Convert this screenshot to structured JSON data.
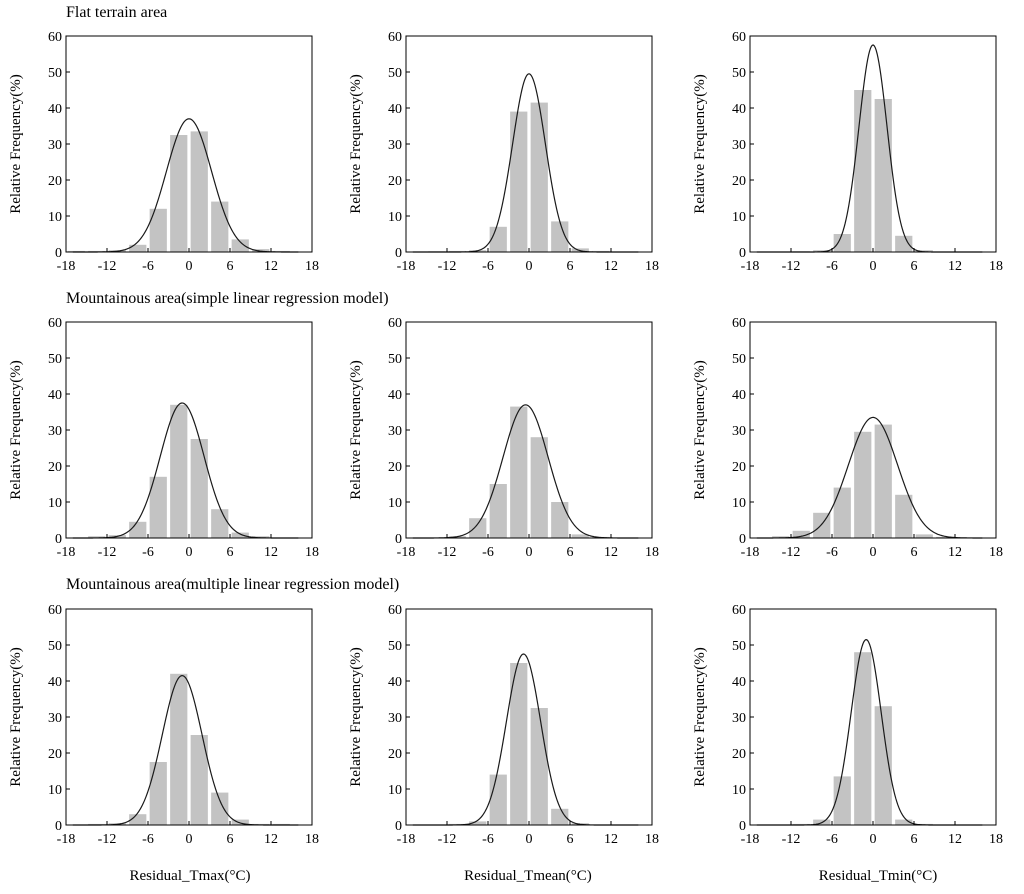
{
  "sections": [
    {
      "title": "Flat terrain area"
    },
    {
      "title": "Mountainous area(simple linear regression model)"
    },
    {
      "title": "Mountainous area(multiple linear regression model)"
    }
  ],
  "xlabels": [
    "Residual_Tmax(°C)",
    "Residual_Tmean(°C)",
    "Residual_Tmin(°C)"
  ],
  "chart_data": [
    {
      "type": "bar",
      "section": "Flat terrain area",
      "variable": "Tmax",
      "ylabel": "Relative Frequency(%)",
      "xlim": [
        -18,
        18
      ],
      "ylim": [
        0,
        60
      ],
      "xticks": [
        -18,
        -12,
        -6,
        0,
        6,
        12,
        18
      ],
      "yticks": [
        0,
        10,
        20,
        30,
        40,
        50,
        60
      ],
      "bin_width": 3,
      "bars": [
        {
          "x": -16.5,
          "y": 0.3
        },
        {
          "x": -13.5,
          "y": 0.3
        },
        {
          "x": -10.5,
          "y": 0.5
        },
        {
          "x": -7.5,
          "y": 2
        },
        {
          "x": -4.5,
          "y": 12
        },
        {
          "x": -1.5,
          "y": 32.5
        },
        {
          "x": 1.5,
          "y": 33.5
        },
        {
          "x": 4.5,
          "y": 14
        },
        {
          "x": 7.5,
          "y": 3.5
        },
        {
          "x": 10.5,
          "y": 0.8
        },
        {
          "x": 13.5,
          "y": 0.3
        }
      ],
      "fit_curve": {
        "type": "normal",
        "mean": 0,
        "peak": 37,
        "sigma": 3.3
      }
    },
    {
      "type": "bar",
      "section": "Flat terrain area",
      "variable": "Tmean",
      "ylabel": "Relative Frequency(%)",
      "xlim": [
        -18,
        18
      ],
      "ylim": [
        0,
        60
      ],
      "xticks": [
        -18,
        -12,
        -6,
        0,
        6,
        12,
        18
      ],
      "yticks": [
        0,
        10,
        20,
        30,
        40,
        50,
        60
      ],
      "bin_width": 3,
      "bars": [
        {
          "x": -13.5,
          "y": 0.2
        },
        {
          "x": -10.5,
          "y": 0.3
        },
        {
          "x": -7.5,
          "y": 0.5
        },
        {
          "x": -4.5,
          "y": 7
        },
        {
          "x": -1.5,
          "y": 39
        },
        {
          "x": 1.5,
          "y": 41.5
        },
        {
          "x": 4.5,
          "y": 8.5
        },
        {
          "x": 7.5,
          "y": 1
        },
        {
          "x": 10.5,
          "y": 0.3
        }
      ],
      "fit_curve": {
        "type": "normal",
        "mean": 0,
        "peak": 49.5,
        "sigma": 2.4
      }
    },
    {
      "type": "bar",
      "section": "Flat terrain area",
      "variable": "Tmin",
      "ylabel": "Relative Frequency(%)",
      "xlim": [
        -18,
        18
      ],
      "ylim": [
        0,
        60
      ],
      "xticks": [
        -18,
        -12,
        -6,
        0,
        6,
        12,
        18
      ],
      "yticks": [
        0,
        10,
        20,
        30,
        40,
        50,
        60
      ],
      "bin_width": 3,
      "bars": [
        {
          "x": -10.5,
          "y": 0.2
        },
        {
          "x": -7.5,
          "y": 0.5
        },
        {
          "x": -4.5,
          "y": 5
        },
        {
          "x": -1.5,
          "y": 45
        },
        {
          "x": 1.5,
          "y": 42.5
        },
        {
          "x": 4.5,
          "y": 4.5
        },
        {
          "x": 7.5,
          "y": 0.5
        }
      ],
      "fit_curve": {
        "type": "normal",
        "mean": 0,
        "peak": 57.5,
        "sigma": 2.05
      }
    },
    {
      "type": "bar",
      "section": "Mountainous area(simple linear regression model)",
      "variable": "Tmax",
      "ylabel": "Relative Frequency(%)",
      "xlim": [
        -18,
        18
      ],
      "ylim": [
        0,
        60
      ],
      "xticks": [
        -18,
        -12,
        -6,
        0,
        6,
        12,
        18
      ],
      "yticks": [
        0,
        10,
        20,
        30,
        40,
        50,
        60
      ],
      "bin_width": 3,
      "bars": [
        {
          "x": -13.5,
          "y": 0.5
        },
        {
          "x": -10.5,
          "y": 0.8
        },
        {
          "x": -7.5,
          "y": 4.5
        },
        {
          "x": -4.5,
          "y": 17
        },
        {
          "x": -1.5,
          "y": 37
        },
        {
          "x": 1.5,
          "y": 27.5
        },
        {
          "x": 4.5,
          "y": 8
        },
        {
          "x": 7.5,
          "y": 1.5
        },
        {
          "x": 10.5,
          "y": 0.5
        }
      ],
      "fit_curve": {
        "type": "normal",
        "mean": -1,
        "peak": 37.5,
        "sigma": 3.2
      }
    },
    {
      "type": "bar",
      "section": "Mountainous area(simple linear regression model)",
      "variable": "Tmean",
      "ylabel": "Relative Frequency(%)",
      "xlim": [
        -18,
        18
      ],
      "ylim": [
        0,
        60
      ],
      "xticks": [
        -18,
        -12,
        -6,
        0,
        6,
        12,
        18
      ],
      "yticks": [
        0,
        10,
        20,
        30,
        40,
        50,
        60
      ],
      "bin_width": 3,
      "bars": [
        {
          "x": -10.5,
          "y": 0.5
        },
        {
          "x": -7.5,
          "y": 5.5
        },
        {
          "x": -4.5,
          "y": 15
        },
        {
          "x": -1.5,
          "y": 36.5
        },
        {
          "x": 1.5,
          "y": 28
        },
        {
          "x": 4.5,
          "y": 10
        },
        {
          "x": 7.5,
          "y": 1
        },
        {
          "x": 10.5,
          "y": 0.3
        }
      ],
      "fit_curve": {
        "type": "normal",
        "mean": -0.5,
        "peak": 37,
        "sigma": 3.3
      }
    },
    {
      "type": "bar",
      "section": "Mountainous area(simple linear regression model)",
      "variable": "Tmin",
      "ylabel": "Relative Frequency(%)",
      "xlim": [
        -18,
        18
      ],
      "ylim": [
        0,
        60
      ],
      "xticks": [
        -18,
        -12,
        -6,
        0,
        6,
        12,
        18
      ],
      "yticks": [
        0,
        10,
        20,
        30,
        40,
        50,
        60
      ],
      "bin_width": 3,
      "bars": [
        {
          "x": -13.5,
          "y": 0.5
        },
        {
          "x": -10.5,
          "y": 2
        },
        {
          "x": -7.5,
          "y": 7
        },
        {
          "x": -4.5,
          "y": 14
        },
        {
          "x": -1.5,
          "y": 29.5
        },
        {
          "x": 1.5,
          "y": 31.5
        },
        {
          "x": 4.5,
          "y": 12
        },
        {
          "x": 7.5,
          "y": 1
        },
        {
          "x": 10.5,
          "y": 0.3
        }
      ],
      "fit_curve": {
        "type": "normal",
        "mean": 0,
        "peak": 33.5,
        "sigma": 3.6
      }
    },
    {
      "type": "bar",
      "section": "Mountainous area(multiple linear regression model)",
      "variable": "Tmax",
      "ylabel": "Relative Frequency(%)",
      "xlim": [
        -18,
        18
      ],
      "ylim": [
        0,
        60
      ],
      "xticks": [
        -18,
        -12,
        -6,
        0,
        6,
        12,
        18
      ],
      "yticks": [
        0,
        10,
        20,
        30,
        40,
        50,
        60
      ],
      "bin_width": 3,
      "bars": [
        {
          "x": -13.5,
          "y": 0.3
        },
        {
          "x": -10.5,
          "y": 0.5
        },
        {
          "x": -7.5,
          "y": 3
        },
        {
          "x": -4.5,
          "y": 17.5
        },
        {
          "x": -1.5,
          "y": 42
        },
        {
          "x": 1.5,
          "y": 25
        },
        {
          "x": 4.5,
          "y": 9
        },
        {
          "x": 7.5,
          "y": 1.5
        },
        {
          "x": 10.5,
          "y": 0.3
        },
        {
          "x": 13.5,
          "y": 0.3
        }
      ],
      "fit_curve": {
        "type": "normal",
        "mean": -1,
        "peak": 41.5,
        "sigma": 2.9
      }
    },
    {
      "type": "bar",
      "section": "Mountainous area(multiple linear regression model)",
      "variable": "Tmean",
      "ylabel": "Relative Frequency(%)",
      "xlim": [
        -18,
        18
      ],
      "ylim": [
        0,
        60
      ],
      "xticks": [
        -18,
        -12,
        -6,
        0,
        6,
        12,
        18
      ],
      "yticks": [
        0,
        10,
        20,
        30,
        40,
        50,
        60
      ],
      "bin_width": 3,
      "bars": [
        {
          "x": -10.5,
          "y": 0.3
        },
        {
          "x": -7.5,
          "y": 1
        },
        {
          "x": -4.5,
          "y": 14
        },
        {
          "x": -1.5,
          "y": 45
        },
        {
          "x": 1.5,
          "y": 32.5
        },
        {
          "x": 4.5,
          "y": 4.5
        },
        {
          "x": 7.5,
          "y": 0.5
        }
      ],
      "fit_curve": {
        "type": "normal",
        "mean": -0.8,
        "peak": 47.5,
        "sigma": 2.5
      }
    },
    {
      "type": "bar",
      "section": "Mountainous area(multiple linear regression model)",
      "variable": "Tmin",
      "ylabel": "Relative Frequency(%)",
      "xlim": [
        -18,
        18
      ],
      "ylim": [
        0,
        60
      ],
      "xticks": [
        -18,
        -12,
        -6,
        0,
        6,
        12,
        18
      ],
      "yticks": [
        0,
        10,
        20,
        30,
        40,
        50,
        60
      ],
      "bin_width": 3,
      "bars": [
        {
          "x": -10.5,
          "y": 0.3
        },
        {
          "x": -7.5,
          "y": 1.5
        },
        {
          "x": -4.5,
          "y": 13.5
        },
        {
          "x": -1.5,
          "y": 48
        },
        {
          "x": 1.5,
          "y": 33
        },
        {
          "x": 4.5,
          "y": 1.5
        },
        {
          "x": 7.5,
          "y": 0.3
        }
      ],
      "fit_curve": {
        "type": "normal",
        "mean": -1,
        "peak": 51.5,
        "sigma": 2.2
      }
    }
  ],
  "colors": {
    "bar": "#c3c3c3",
    "curve": "#1a1a1a",
    "axis": "#000000"
  }
}
